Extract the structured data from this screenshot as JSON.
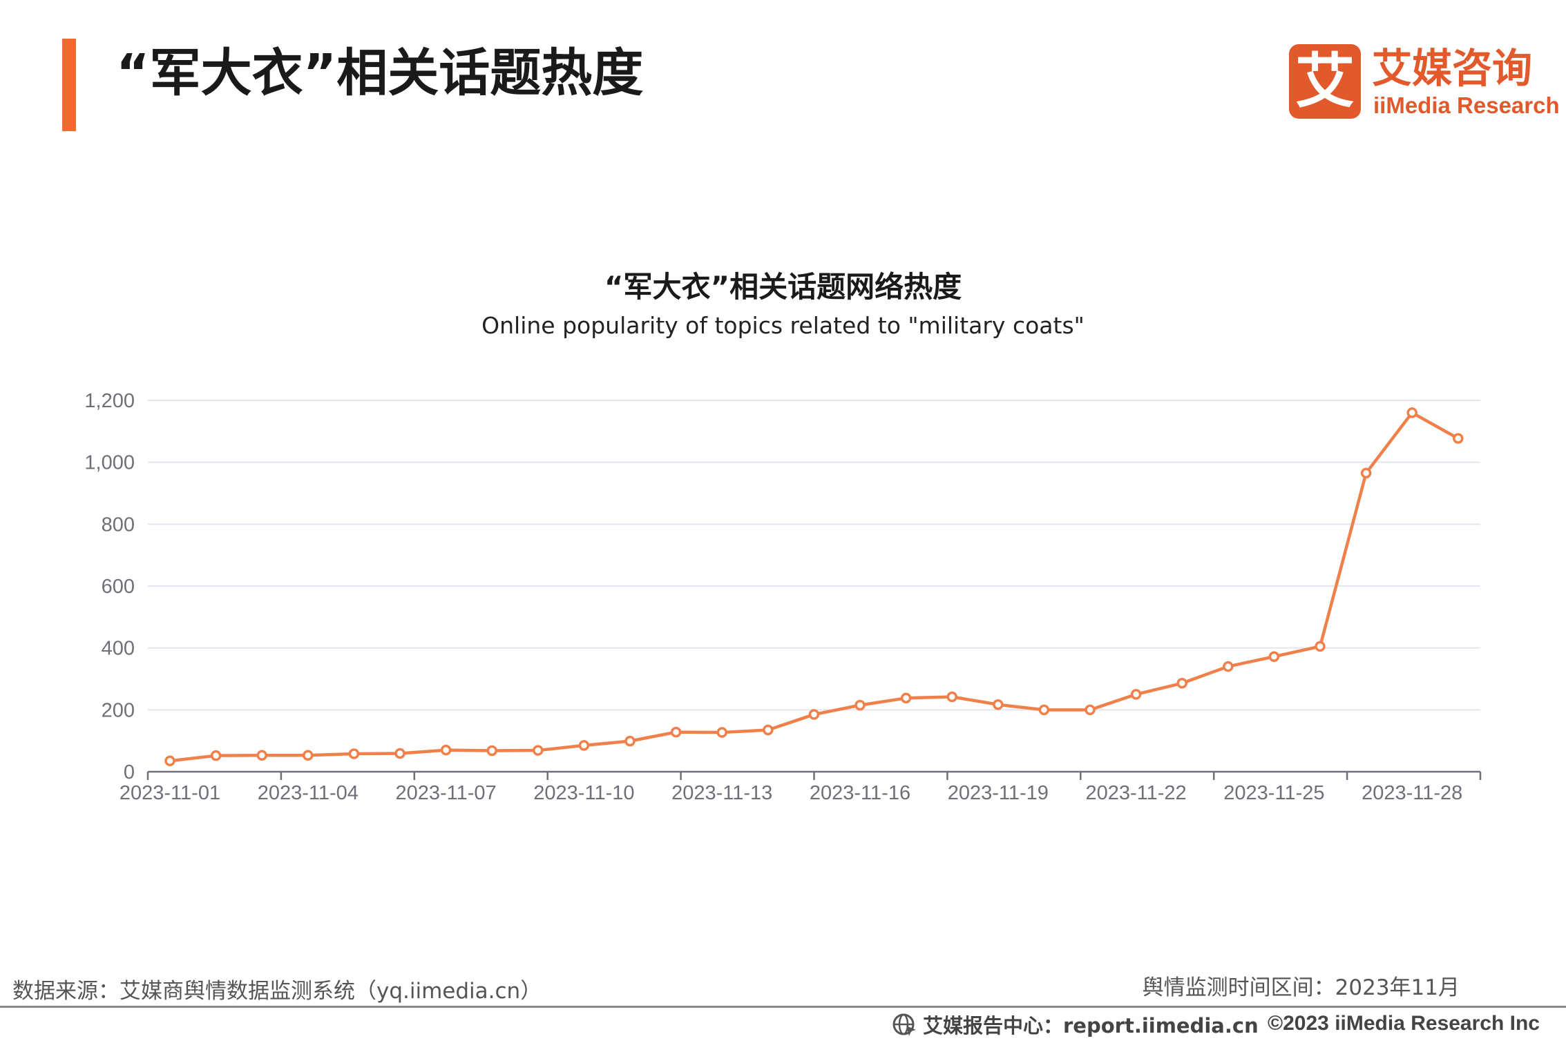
{
  "header": {
    "title": "“军大衣”相关话题热度"
  },
  "logo": {
    "mark_char": "艾",
    "name_cn": "艾媒咨询",
    "name_en": "iiMedia Research"
  },
  "colors": {
    "accent": "#f26a32",
    "brand": "#e25a2c",
    "series_line": "#f0804a"
  },
  "chart_data": {
    "type": "line",
    "title": "“军大衣”相关话题网络热度",
    "subtitle": "Online popularity of topics related to \"military coats\"",
    "xlabel": "",
    "ylabel": "",
    "ylim": [
      0,
      1200
    ],
    "y_ticks": [
      0,
      200,
      400,
      600,
      800,
      1000,
      1200
    ],
    "y_tick_labels": [
      "0",
      "200",
      "400",
      "600",
      "800",
      "1,000",
      "1,200"
    ],
    "x": [
      "2023-11-01",
      "2023-11-02",
      "2023-11-03",
      "2023-11-04",
      "2023-11-05",
      "2023-11-06",
      "2023-11-07",
      "2023-11-08",
      "2023-11-09",
      "2023-11-10",
      "2023-11-11",
      "2023-11-12",
      "2023-11-13",
      "2023-11-14",
      "2023-11-15",
      "2023-11-16",
      "2023-11-17",
      "2023-11-18",
      "2023-11-19",
      "2023-11-20",
      "2023-11-21",
      "2023-11-22",
      "2023-11-23",
      "2023-11-24",
      "2023-11-25",
      "2023-11-26",
      "2023-11-27",
      "2023-11-28",
      "2023-11-29"
    ],
    "x_tick_labels": [
      "2023-11-01",
      "2023-11-04",
      "2023-11-07",
      "2023-11-10",
      "2023-11-13",
      "2023-11-16",
      "2023-11-19",
      "2023-11-22",
      "2023-11-25",
      "2023-11-28"
    ],
    "series": [
      {
        "values": [
          35,
          52,
          53,
          53,
          58,
          59,
          70,
          68,
          69,
          85,
          99,
          128,
          127,
          135,
          185,
          215,
          238,
          242,
          217,
          200,
          200,
          250,
          286,
          340,
          372,
          405,
          965,
          1160,
          1077
        ]
      }
    ],
    "grid": true,
    "legend": "none"
  },
  "footer": {
    "source": "数据来源：艾媒商舆情数据监测系统（yq.iimedia.cn）",
    "period": "舆情监测时间区间：2023年11月",
    "report": "艾媒报告中心：report.iimedia.cn",
    "copyright": "©2023  iiMedia Research  Inc"
  }
}
